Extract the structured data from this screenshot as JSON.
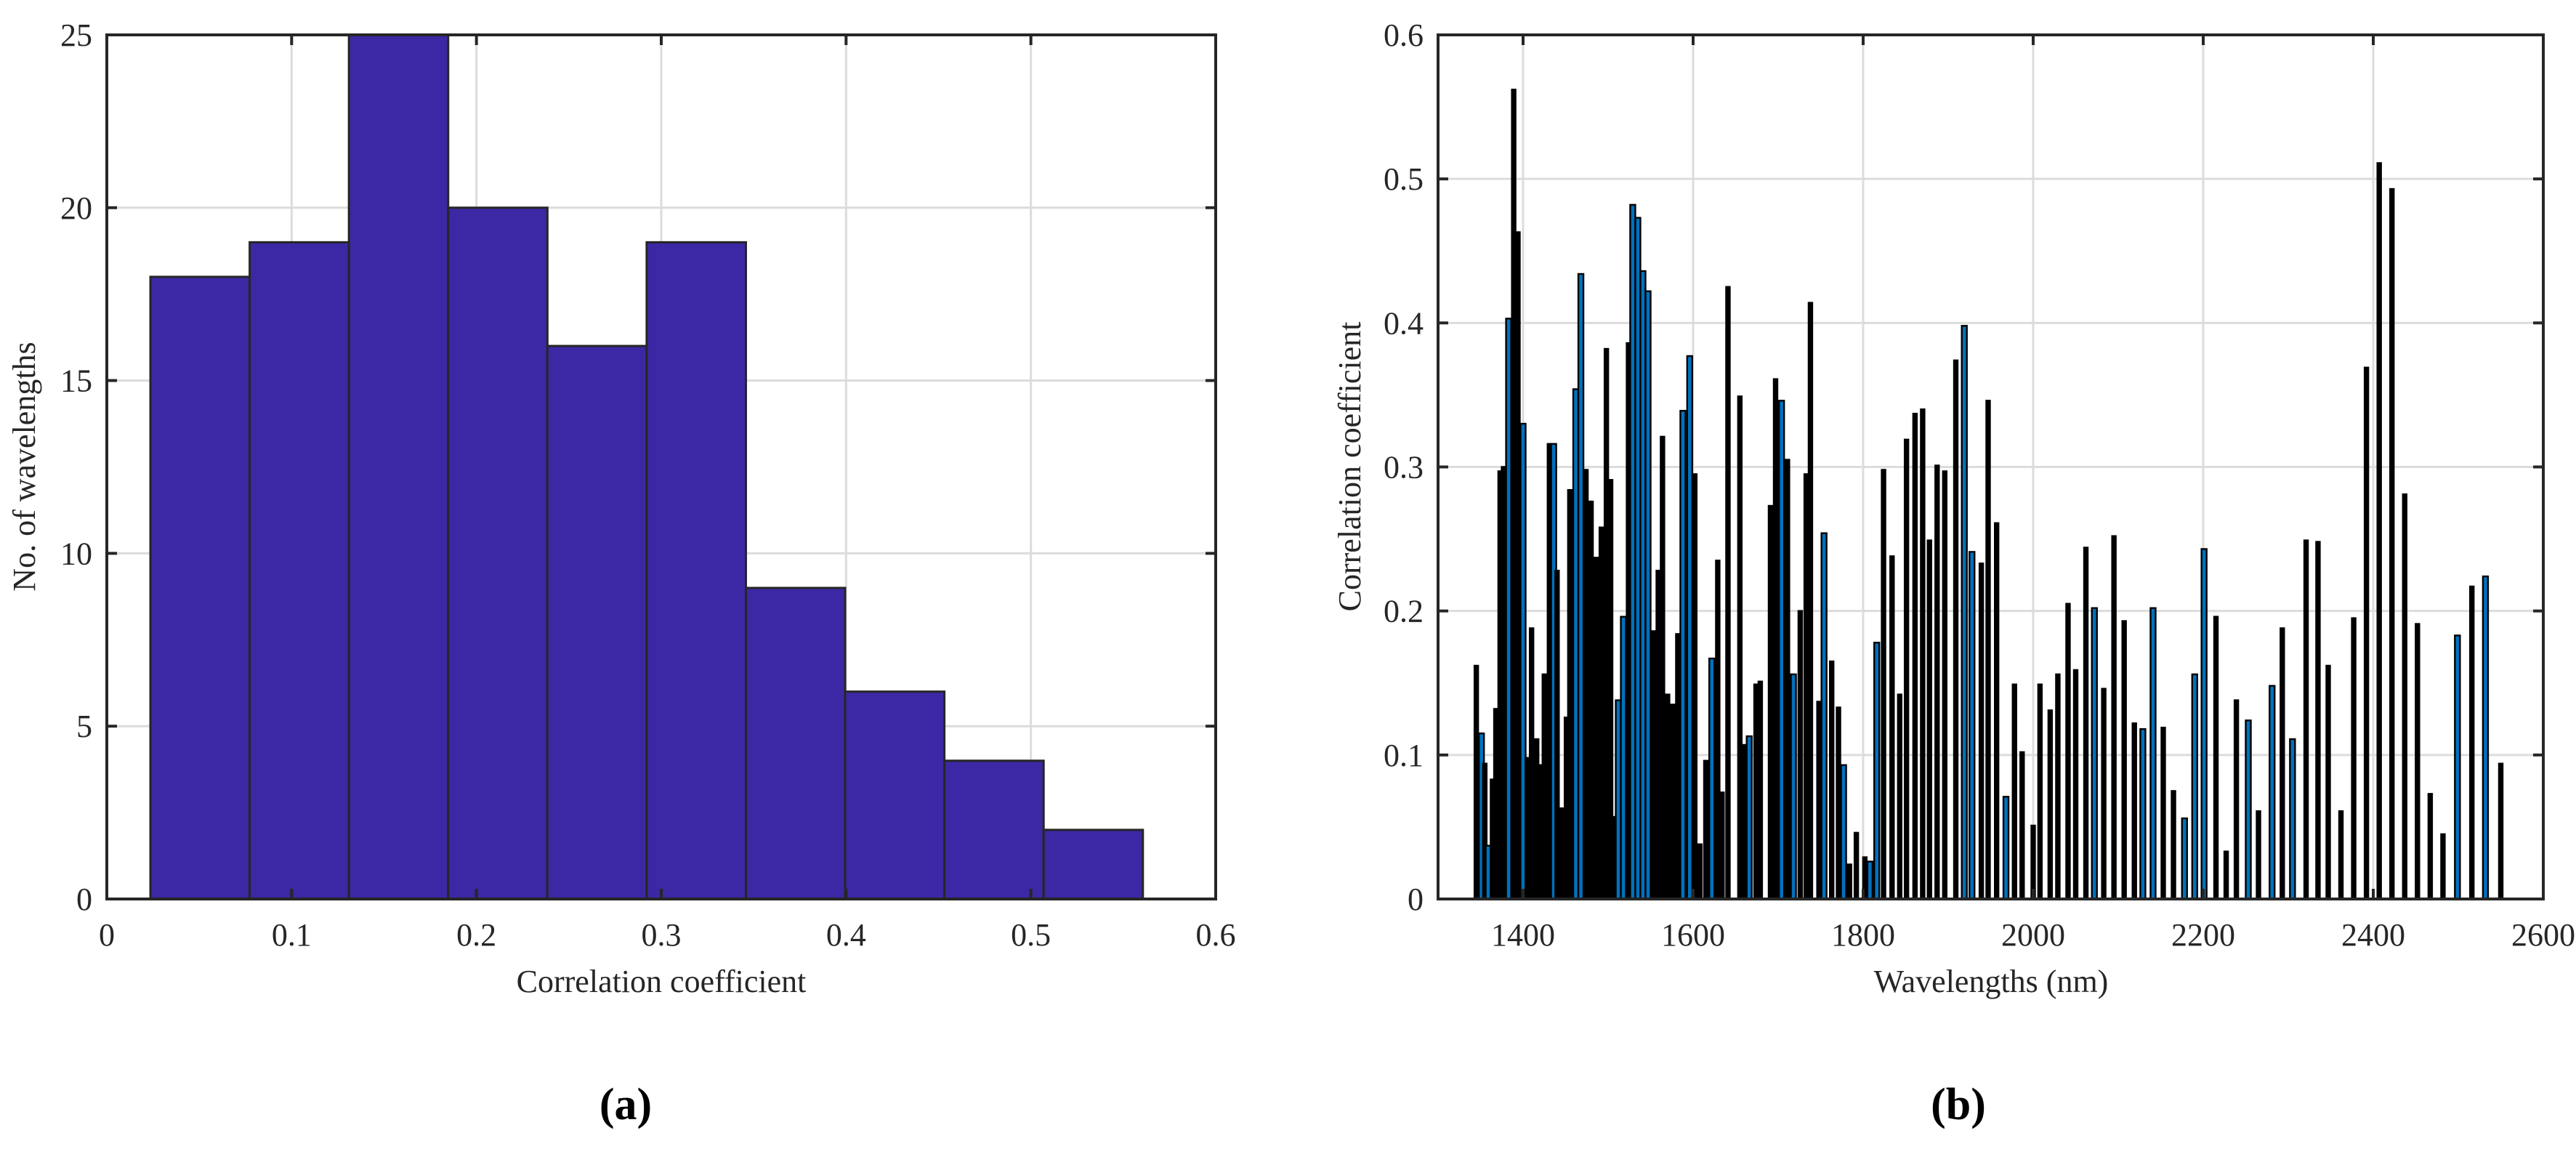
{
  "chart_data": [
    {
      "type": "bar",
      "subtype": "histogram",
      "panel_label": "(a)",
      "xlabel": "Correlation coefficient",
      "ylabel": "No. of wavelengths",
      "xlim": [
        0,
        0.6
      ],
      "ylim": [
        0,
        25
      ],
      "xticks": [
        "0",
        "0.1",
        "0.2",
        "0.3",
        "0.4",
        "0.5",
        "0.6"
      ],
      "xtick_values": [
        0,
        0.1,
        0.2,
        0.3,
        0.4,
        0.5,
        0.6
      ],
      "yticks": [
        "0",
        "5",
        "10",
        "15",
        "20",
        "25"
      ],
      "ytick_values": [
        0,
        5,
        10,
        15,
        20,
        25
      ],
      "grid": true,
      "bin_edges": [
        0.0236,
        0.0773,
        0.131,
        0.1847,
        0.2384,
        0.2921,
        0.3458,
        0.3995,
        0.4532,
        0.5069,
        0.5606
      ],
      "values": [
        18,
        19,
        25,
        20,
        16,
        19,
        9,
        6,
        4,
        2
      ],
      "color": "#3c28a4"
    },
    {
      "type": "bar",
      "panel_label": "(b)",
      "xlabel": "Wavelengths (nm)",
      "ylabel": "Correlation coefficient",
      "xlim": [
        1300,
        2600
      ],
      "ylim": [
        0,
        0.6
      ],
      "xticks": [
        "1400",
        "1600",
        "1800",
        "2000",
        "2200",
        "2400",
        "2600"
      ],
      "xtick_values": [
        1400,
        1600,
        1800,
        2000,
        2200,
        2400,
        2600
      ],
      "yticks": [
        "0",
        "0.1",
        "0.2",
        "0.3",
        "0.4",
        "0.5",
        "0.6"
      ],
      "ytick_values": [
        0,
        0.1,
        0.2,
        0.3,
        0.4,
        0.5,
        0.6
      ],
      "grid": true,
      "bar_color": "#0072bd",
      "edge_color": "#000000",
      "points_columns": [
        "wavelength",
        "value",
        "highlighted"
      ],
      "points": [
        [
          1345,
          0.162,
          0
        ],
        [
          1351,
          0.115,
          1
        ],
        [
          1355,
          0.094,
          0
        ],
        [
          1359,
          0.037,
          1
        ],
        [
          1364,
          0.083,
          0
        ],
        [
          1368,
          0.132,
          0
        ],
        [
          1373,
          0.297,
          0
        ],
        [
          1377,
          0.3,
          0
        ],
        [
          1383,
          0.403,
          1
        ],
        [
          1389,
          0.562,
          0
        ],
        [
          1394,
          0.463,
          0
        ],
        [
          1400,
          0.33,
          1
        ],
        [
          1405,
          0.098,
          0
        ],
        [
          1410,
          0.188,
          0
        ],
        [
          1416,
          0.111,
          0
        ],
        [
          1419,
          0.093,
          0
        ],
        [
          1425,
          0.156,
          0
        ],
        [
          1431,
          0.316,
          0
        ],
        [
          1436,
          0.316,
          1
        ],
        [
          1440,
          0.228,
          0
        ],
        [
          1446,
          0.063,
          0
        ],
        [
          1451,
          0.126,
          0
        ],
        [
          1455,
          0.284,
          0
        ],
        [
          1462,
          0.354,
          1
        ],
        [
          1468,
          0.434,
          1
        ],
        [
          1474,
          0.298,
          0
        ],
        [
          1480,
          0.276,
          0
        ],
        [
          1486,
          0.237,
          0
        ],
        [
          1492,
          0.258,
          0
        ],
        [
          1498,
          0.382,
          0
        ],
        [
          1503,
          0.291,
          0
        ],
        [
          1508,
          0.057,
          0
        ],
        [
          1512,
          0.138,
          1
        ],
        [
          1518,
          0.196,
          1
        ],
        [
          1524,
          0.386,
          0
        ],
        [
          1529,
          0.482,
          1
        ],
        [
          1535,
          0.473,
          1
        ],
        [
          1541,
          0.436,
          1
        ],
        [
          1547,
          0.422,
          1
        ],
        [
          1553,
          0.186,
          0
        ],
        [
          1559,
          0.228,
          0
        ],
        [
          1564,
          0.321,
          0
        ],
        [
          1570,
          0.142,
          0
        ],
        [
          1576,
          0.135,
          0
        ],
        [
          1582,
          0.184,
          0
        ],
        [
          1588,
          0.339,
          1
        ],
        [
          1596,
          0.377,
          1
        ],
        [
          1602,
          0.295,
          0
        ],
        [
          1608,
          0.038,
          0
        ],
        [
          1615,
          0.096,
          0
        ],
        [
          1622,
          0.167,
          1
        ],
        [
          1629,
          0.235,
          0
        ],
        [
          1634,
          0.074,
          0
        ],
        [
          1641,
          0.425,
          0
        ],
        [
          1655,
          0.349,
          0
        ],
        [
          1661,
          0.107,
          0
        ],
        [
          1666,
          0.113,
          1
        ],
        [
          1674,
          0.149,
          0
        ],
        [
          1679,
          0.151,
          0
        ],
        [
          1691,
          0.273,
          0
        ],
        [
          1697,
          0.361,
          0
        ],
        [
          1704,
          0.346,
          1
        ],
        [
          1711,
          0.305,
          0
        ],
        [
          1718,
          0.156,
          1
        ],
        [
          1726,
          0.2,
          0
        ],
        [
          1733,
          0.295,
          0
        ],
        [
          1738,
          0.414,
          0
        ],
        [
          1748,
          0.137,
          0
        ],
        [
          1754,
          0.254,
          1
        ],
        [
          1763,
          0.165,
          0
        ],
        [
          1771,
          0.133,
          0
        ],
        [
          1777,
          0.093,
          1
        ],
        [
          1784,
          0.024,
          0
        ],
        [
          1792,
          0.046,
          0
        ],
        [
          1802,
          0.029,
          0
        ],
        [
          1808,
          0.026,
          1
        ],
        [
          1816,
          0.178,
          1
        ],
        [
          1824,
          0.298,
          0
        ],
        [
          1834,
          0.238,
          0
        ],
        [
          1843,
          0.142,
          0
        ],
        [
          1851,
          0.319,
          0
        ],
        [
          1861,
          0.337,
          0
        ],
        [
          1870,
          0.34,
          0
        ],
        [
          1878,
          0.249,
          0
        ],
        [
          1887,
          0.301,
          0
        ],
        [
          1896,
          0.297,
          0
        ],
        [
          1909,
          0.374,
          0
        ],
        [
          1919,
          0.398,
          1
        ],
        [
          1928,
          0.241,
          1
        ],
        [
          1939,
          0.233,
          0
        ],
        [
          1947,
          0.346,
          0
        ],
        [
          1957,
          0.261,
          0
        ],
        [
          1968,
          0.071,
          1
        ],
        [
          1978,
          0.149,
          0
        ],
        [
          1987,
          0.102,
          0
        ],
        [
          2000,
          0.051,
          0
        ],
        [
          2008,
          0.149,
          0
        ],
        [
          2020,
          0.131,
          0
        ],
        [
          2029,
          0.156,
          0
        ],
        [
          2041,
          0.205,
          0
        ],
        [
          2050,
          0.159,
          0
        ],
        [
          2062,
          0.244,
          0
        ],
        [
          2072,
          0.202,
          1
        ],
        [
          2083,
          0.146,
          0
        ],
        [
          2095,
          0.252,
          0
        ],
        [
          2107,
          0.193,
          0
        ],
        [
          2119,
          0.122,
          0
        ],
        [
          2129,
          0.118,
          1
        ],
        [
          2141,
          0.202,
          1
        ],
        [
          2153,
          0.119,
          0
        ],
        [
          2165,
          0.075,
          0
        ],
        [
          2178,
          0.056,
          1
        ],
        [
          2190,
          0.156,
          1
        ],
        [
          2201,
          0.243,
          1
        ],
        [
          2215,
          0.196,
          0
        ],
        [
          2227,
          0.033,
          0
        ],
        [
          2239,
          0.138,
          0
        ],
        [
          2253,
          0.124,
          1
        ],
        [
          2265,
          0.061,
          0
        ],
        [
          2281,
          0.148,
          1
        ],
        [
          2293,
          0.188,
          0
        ],
        [
          2305,
          0.111,
          1
        ],
        [
          2321,
          0.249,
          0
        ],
        [
          2335,
          0.248,
          0
        ],
        [
          2347,
          0.162,
          0
        ],
        [
          2362,
          0.061,
          0
        ],
        [
          2377,
          0.195,
          0
        ],
        [
          2392,
          0.369,
          0
        ],
        [
          2407,
          0.511,
          0
        ],
        [
          2422,
          0.493,
          0
        ],
        [
          2437,
          0.281,
          0
        ],
        [
          2452,
          0.191,
          0
        ],
        [
          2467,
          0.073,
          0
        ],
        [
          2482,
          0.045,
          0
        ],
        [
          2499,
          0.183,
          1
        ],
        [
          2516,
          0.217,
          0
        ],
        [
          2532,
          0.224,
          1
        ],
        [
          2550,
          0.094,
          0
        ]
      ]
    }
  ]
}
